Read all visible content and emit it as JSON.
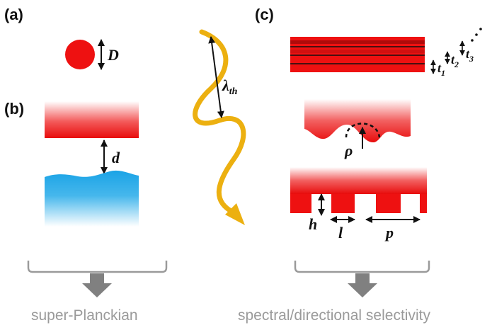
{
  "panels": {
    "a": "(a)",
    "b": "(b)",
    "c": "(c)"
  },
  "symbols": {
    "D": "D",
    "d": "d",
    "lambda": "λ",
    "lambda_sub": "th",
    "t1": "t",
    "t1_sub": "1",
    "t2": "t",
    "t2_sub": "2",
    "t3": "t",
    "t3_sub": "3",
    "rho": "ρ",
    "h": "h",
    "l": "l",
    "p": "p"
  },
  "captions": {
    "left": "super-Planckian",
    "right": "spectral/directional selectivity"
  },
  "colors": {
    "red": "#ee1111",
    "blue": "#1ea6e6",
    "wave": "#ecb010",
    "bracket": "#9a9a9a",
    "arrow_down": "#808080"
  }
}
